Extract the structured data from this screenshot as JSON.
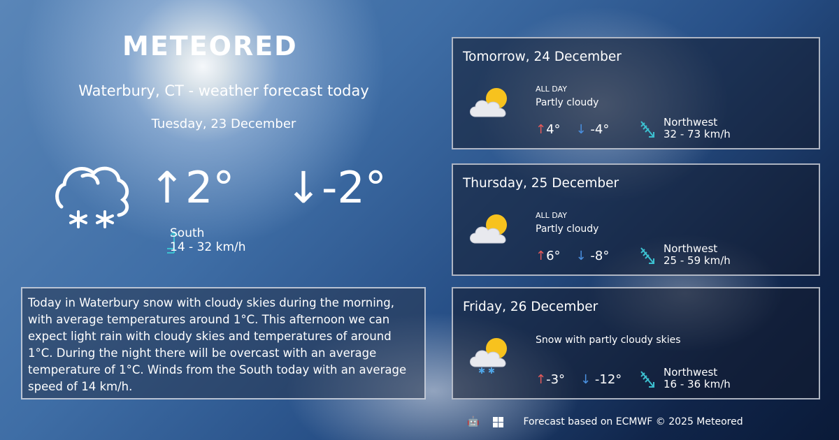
{
  "brand": "METEORED",
  "city_title": "Waterbury, CT - weather forecast today",
  "today": {
    "date": "Tuesday, 23 December",
    "icon": "snow-cloud-icon",
    "max": "2°",
    "min": "-2°",
    "wind_dir": "South",
    "wind_speed": "14 - 32 km/h"
  },
  "description": "Today in Waterbury snow with cloudy skies during the morning, with average temperatures around 1°C. This afternoon we can expect light rain with cloudy skies and temperatures of around 1°C. During the night there will be overcast with an average temperature of 1°C. Winds from the South today with an average speed of 14 km/h.",
  "forecast": [
    {
      "title": "Tomorrow, 24 December",
      "period": "ALL DAY",
      "summary": "Partly cloudy",
      "max": "4°",
      "min": "-4°",
      "wind_dir": "Northwest",
      "wind_speed": "32 - 73 km/h",
      "icon": "partly-cloudy-icon"
    },
    {
      "title": "Thursday, 25 December",
      "period": "ALL DAY",
      "summary": "Partly cloudy",
      "max": "6°",
      "min": "-8°",
      "wind_dir": "Northwest",
      "wind_speed": "25 - 59 km/h",
      "icon": "partly-cloudy-icon"
    },
    {
      "title": "Friday, 26 December",
      "summary": "Snow with partly cloudy skies",
      "max": "-3°",
      "min": "-12°",
      "wind_dir": "Northwest",
      "wind_speed": "16 - 36 km/h",
      "icon": "snow-partly-cloudy-icon"
    }
  ],
  "footer": {
    "text": "Forecast based on ECMWF © 2025 Meteored",
    "icons": [
      "android-icon",
      "apple-icon",
      "windows-icon"
    ]
  },
  "colors": {
    "max": "#e65a5a",
    "min": "#4a90e0",
    "wind": "#3cc0d0"
  }
}
